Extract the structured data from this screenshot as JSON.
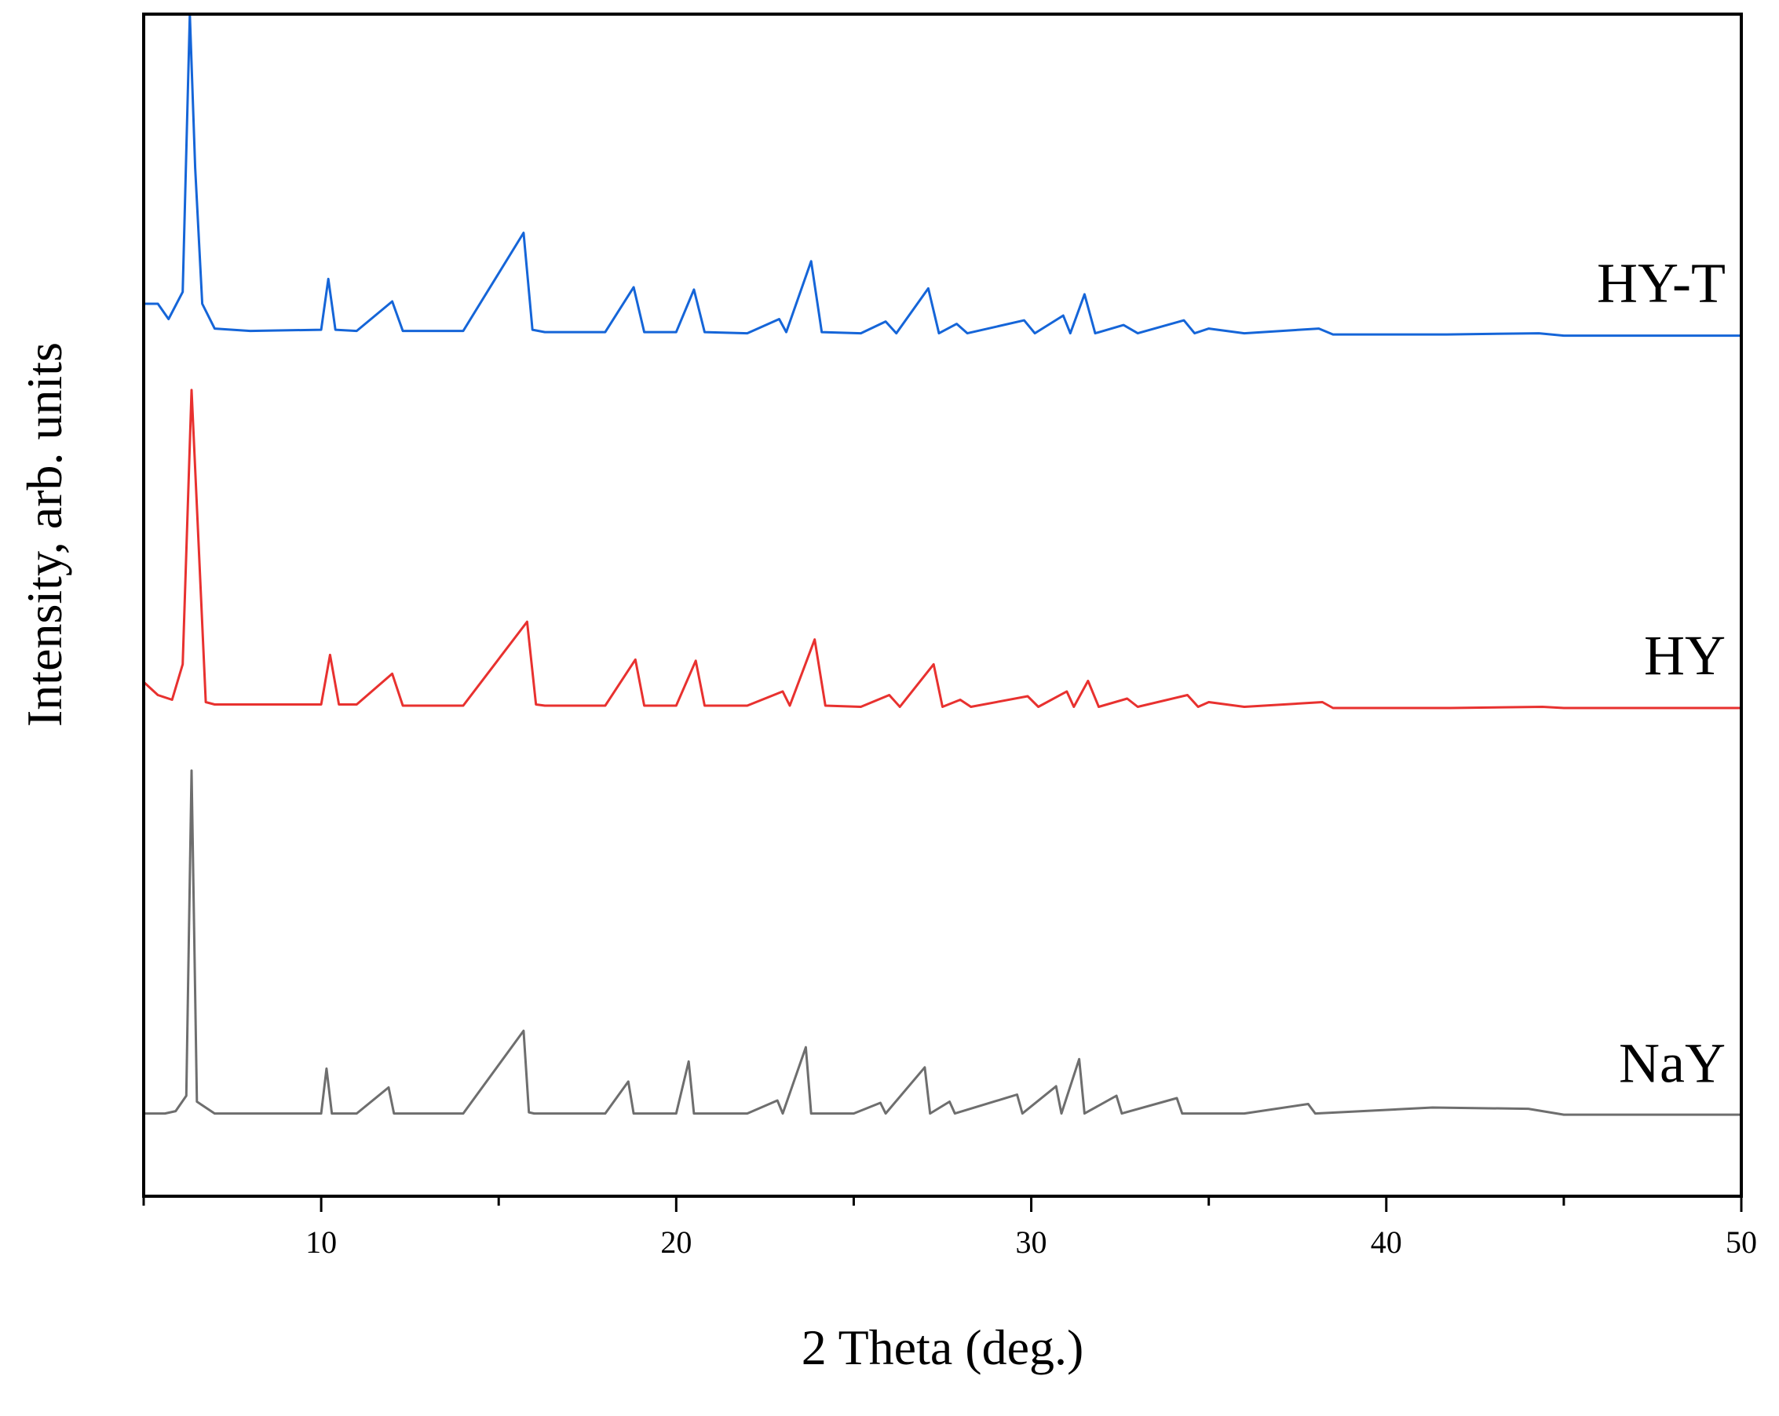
{
  "chart_data": {
    "type": "line",
    "title": "",
    "xlabel": "2 Theta (deg.)",
    "ylabel": "Intensity, arb. units",
    "xlim": [
      5,
      50
    ],
    "ylim": [
      0,
      100
    ],
    "xticks": [
      10,
      20,
      30,
      40,
      50
    ],
    "xtick_labels": [
      "10",
      "20",
      "30",
      "40",
      "50"
    ],
    "yticks": [],
    "grid": false,
    "legend": "none",
    "series": [
      {
        "name": "HY-T",
        "color": "#1565d8",
        "baseline": 73.0,
        "x": [
          5.0,
          5.4,
          5.7,
          6.1,
          6.3,
          6.45,
          6.65,
          7.0,
          8.0,
          10.0,
          10.2,
          10.4,
          11.0,
          12.0,
          12.3,
          14.0,
          15.7,
          15.95,
          16.3,
          18.0,
          18.8,
          19.1,
          20.0,
          20.5,
          20.8,
          22.0,
          22.9,
          23.1,
          23.8,
          24.1,
          25.2,
          25.9,
          26.2,
          27.1,
          27.4,
          27.9,
          28.2,
          29.8,
          30.1,
          30.9,
          31.1,
          31.5,
          31.8,
          32.6,
          33.0,
          34.3,
          34.6,
          35.0,
          36.0,
          38.1,
          38.5,
          41.7,
          44.3,
          45.0,
          50.0
        ],
        "y": [
          75.5,
          75.5,
          74.2,
          76.5,
          100.0,
          87.0,
          75.5,
          73.4,
          73.2,
          73.3,
          77.6,
          73.3,
          73.2,
          75.7,
          73.2,
          73.2,
          81.5,
          73.3,
          73.1,
          73.1,
          76.9,
          73.1,
          73.1,
          76.7,
          73.1,
          73.0,
          74.2,
          73.1,
          79.1,
          73.1,
          73.0,
          74.0,
          73.0,
          76.8,
          73.0,
          73.8,
          73.0,
          74.1,
          73.0,
          74.5,
          73.0,
          76.3,
          73.0,
          73.7,
          73.0,
          74.1,
          73.0,
          73.4,
          73.0,
          73.4,
          72.9,
          72.9,
          73.0,
          72.8,
          72.8
        ]
      },
      {
        "name": "HY",
        "color": "#e8312f",
        "baseline": 41.5,
        "x": [
          5.0,
          5.4,
          5.8,
          6.1,
          6.35,
          6.55,
          6.75,
          7.0,
          8.0,
          10.0,
          10.25,
          10.5,
          11.0,
          12.0,
          12.3,
          14.0,
          15.8,
          16.05,
          16.3,
          18.0,
          18.85,
          19.1,
          20.0,
          20.55,
          20.8,
          22.0,
          23.0,
          23.2,
          23.9,
          24.2,
          25.2,
          26.0,
          26.3,
          27.25,
          27.5,
          28.0,
          28.3,
          29.9,
          30.2,
          31.0,
          31.2,
          31.6,
          31.9,
          32.7,
          33.0,
          34.4,
          34.7,
          35.0,
          36.0,
          38.2,
          38.5,
          41.8,
          44.4,
          45.0,
          50.0
        ],
        "y": [
          43.5,
          42.4,
          42.0,
          45.0,
          68.2,
          55.0,
          41.8,
          41.6,
          41.6,
          41.6,
          45.8,
          41.6,
          41.6,
          44.2,
          41.5,
          41.5,
          48.6,
          41.6,
          41.5,
          41.5,
          45.4,
          41.5,
          41.5,
          45.3,
          41.5,
          41.5,
          42.7,
          41.5,
          47.1,
          41.5,
          41.4,
          42.4,
          41.4,
          45.0,
          41.4,
          42.0,
          41.4,
          42.3,
          41.4,
          42.7,
          41.4,
          43.6,
          41.4,
          42.1,
          41.4,
          42.4,
          41.4,
          41.8,
          41.4,
          41.8,
          41.3,
          41.3,
          41.4,
          41.3,
          41.3
        ]
      },
      {
        "name": "NaY",
        "color": "#6e6e6e",
        "baseline": 7.0,
        "x": [
          5.0,
          5.6,
          5.9,
          6.2,
          6.35,
          6.5,
          7.0,
          8.0,
          10.0,
          10.15,
          10.3,
          11.0,
          11.9,
          12.05,
          14.0,
          15.7,
          15.85,
          16.0,
          18.0,
          18.65,
          18.8,
          20.0,
          20.35,
          20.5,
          22.0,
          22.85,
          23.0,
          23.65,
          23.8,
          25.0,
          25.75,
          25.9,
          27.0,
          27.15,
          27.7,
          27.85,
          29.6,
          29.75,
          30.7,
          30.85,
          31.35,
          31.5,
          32.4,
          32.55,
          34.1,
          34.25,
          36.0,
          37.8,
          38.0,
          41.3,
          44.0,
          45.0,
          50.0
        ],
        "y": [
          7.0,
          7.0,
          7.2,
          8.5,
          36.0,
          8.0,
          7.0,
          7.0,
          7.0,
          10.8,
          7.0,
          7.0,
          9.2,
          7.0,
          7.0,
          14.0,
          7.1,
          7.0,
          7.0,
          9.7,
          7.0,
          7.0,
          11.4,
          7.0,
          7.0,
          8.1,
          7.0,
          12.6,
          7.0,
          7.0,
          7.9,
          7.0,
          10.9,
          7.0,
          8.0,
          7.0,
          8.6,
          7.0,
          9.3,
          7.0,
          11.6,
          7.0,
          8.5,
          7.0,
          8.3,
          7.0,
          7.0,
          7.8,
          7.0,
          7.5,
          7.4,
          6.9,
          6.9
        ]
      }
    ]
  }
}
